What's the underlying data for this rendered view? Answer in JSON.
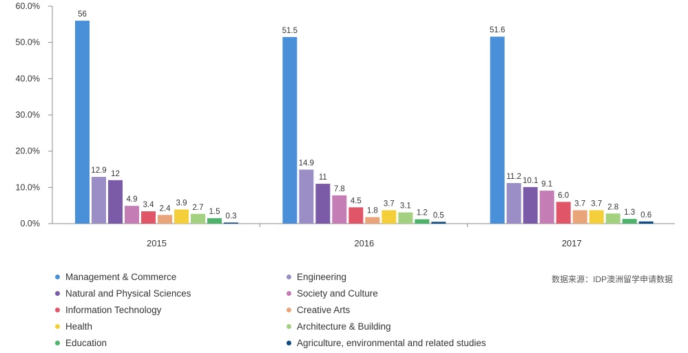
{
  "chart_data": {
    "type": "bar",
    "categories": [
      "2015",
      "2016",
      "2017"
    ],
    "yticks": [
      "0.0%",
      "10.0%",
      "20.0%",
      "30.0%",
      "40.0%",
      "50.0%",
      "60.0%"
    ],
    "ylim": [
      0,
      60
    ],
    "series": [
      {
        "name": "Management & Commerce",
        "color": "#4a90d9",
        "values": [
          56,
          51.5,
          51.6
        ],
        "labels": [
          "56",
          "51.5",
          "51.6"
        ]
      },
      {
        "name": "Engineering",
        "color": "#9b8ec7",
        "values": [
          12.9,
          14.9,
          11.2
        ],
        "labels": [
          "12.9",
          "14.9",
          "11.2"
        ]
      },
      {
        "name": "Natural and Physical Sciences",
        "color": "#7b5ba8",
        "values": [
          12,
          11,
          10.1
        ],
        "labels": [
          "12",
          "11",
          "10.1"
        ]
      },
      {
        "name": "Society and Culture",
        "color": "#c57db5",
        "values": [
          4.9,
          7.8,
          9.1
        ],
        "labels": [
          "4.9",
          "7.8",
          "9.1"
        ]
      },
      {
        "name": "Information Technology",
        "color": "#e05567",
        "values": [
          3.4,
          4.5,
          6.0
        ],
        "labels": [
          "3.4",
          "4.5",
          "6.0"
        ]
      },
      {
        "name": "Creative Arts",
        "color": "#e9a47a",
        "values": [
          2.4,
          1.8,
          3.7
        ],
        "labels": [
          "2.4",
          "1.8",
          "3.7"
        ]
      },
      {
        "name": "Health",
        "color": "#f4cf3a",
        "values": [
          3.9,
          3.7,
          3.7
        ],
        "labels": [
          "3.9",
          "3.7",
          "3.7"
        ]
      },
      {
        "name": "Architecture & Building",
        "color": "#a3d17f",
        "values": [
          2.7,
          3.1,
          2.8
        ],
        "labels": [
          "2.7",
          "3.1",
          "2.8"
        ]
      },
      {
        "name": "Education",
        "color": "#4db36a",
        "values": [
          1.5,
          1.2,
          1.3
        ],
        "labels": [
          "1.5",
          "1.2",
          "1.3"
        ]
      },
      {
        "name": "Agriculture, environmental and related studies",
        "color": "#0f4c81",
        "values": [
          0.3,
          0.5,
          0.6
        ],
        "labels": [
          "0.3",
          "0.5",
          "0.6"
        ]
      }
    ],
    "legend_position": "bottom",
    "grid": false
  },
  "source": "数据来源：IDP澳洲留学申请数据"
}
